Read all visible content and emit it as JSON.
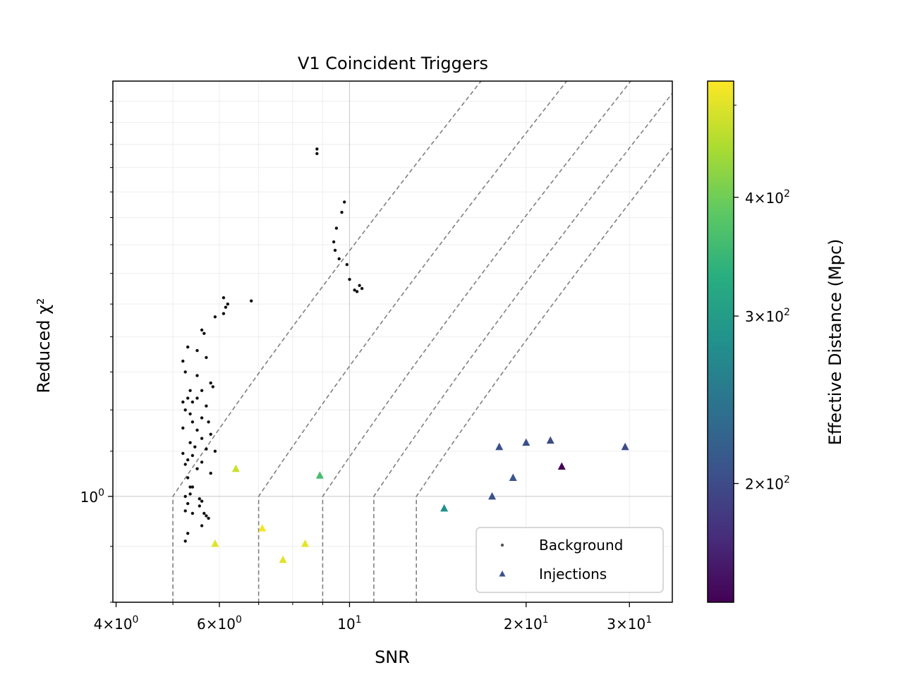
{
  "chart_data": {
    "type": "scatter",
    "title": "V1 Coincident Triggers",
    "xlabel": "SNR",
    "ylabel": "Reduced χ²",
    "xscale": "log",
    "yscale": "log",
    "xlim": [
      3.95,
      35.5
    ],
    "ylim": [
      0.8,
      2.4
    ],
    "grid": true,
    "x_ticks": [
      {
        "value": 4,
        "mant": "4",
        "exp": "0"
      },
      {
        "value": 6,
        "mant": "6",
        "exp": "0"
      },
      {
        "value": 10,
        "mant": "",
        "exp": "1"
      },
      {
        "value": 20,
        "mant": "2",
        "exp": "1"
      },
      {
        "value": 30,
        "mant": "3",
        "exp": "1"
      }
    ],
    "y_ticks": [
      {
        "value": 1.0,
        "mant": "",
        "exp": "0"
      }
    ],
    "legend": {
      "placement": "lower-right",
      "entries": [
        {
          "label": "Background",
          "marker": "dot",
          "color": "#555555"
        },
        {
          "label": "Injections",
          "marker": "triangle",
          "color": "#3b528b"
        }
      ]
    },
    "colorbar": {
      "label": "Effective Distance (Mpc)",
      "range": [
        150,
        530
      ],
      "scale": "log",
      "colormap": "viridis",
      "ticks": [
        {
          "value": 200,
          "mant": "2",
          "exp": "2"
        },
        {
          "value": 300,
          "mant": "3",
          "exp": "2"
        },
        {
          "value": 400,
          "mant": "4",
          "exp": "2"
        }
      ]
    },
    "threshold_curves": [
      {
        "snr_min": 5.0
      },
      {
        "snr_min": 7.0
      },
      {
        "snr_min": 9.0
      },
      {
        "snr_min": 11.0
      },
      {
        "snr_min": 13.0
      }
    ],
    "series": [
      {
        "name": "Background",
        "marker": "dot",
        "points": [
          [
            8.8,
            2.08
          ],
          [
            8.8,
            2.06
          ],
          [
            9.8,
            1.86
          ],
          [
            9.7,
            1.82
          ],
          [
            9.5,
            1.76
          ],
          [
            9.4,
            1.71
          ],
          [
            9.45,
            1.68
          ],
          [
            9.6,
            1.65
          ],
          [
            9.9,
            1.63
          ],
          [
            10.0,
            1.58
          ],
          [
            10.5,
            1.55
          ],
          [
            10.3,
            1.54
          ],
          [
            10.2,
            1.545
          ],
          [
            10.4,
            1.56
          ],
          [
            6.1,
            1.52
          ],
          [
            6.2,
            1.5
          ],
          [
            6.15,
            1.49
          ],
          [
            6.1,
            1.47
          ],
          [
            5.9,
            1.46
          ],
          [
            6.8,
            1.51
          ],
          [
            5.6,
            1.42
          ],
          [
            5.65,
            1.41
          ],
          [
            5.3,
            1.37
          ],
          [
            5.5,
            1.36
          ],
          [
            5.7,
            1.34
          ],
          [
            5.2,
            1.33
          ],
          [
            5.25,
            1.3
          ],
          [
            5.5,
            1.29
          ],
          [
            5.8,
            1.27
          ],
          [
            5.85,
            1.26
          ],
          [
            5.35,
            1.25
          ],
          [
            5.6,
            1.25
          ],
          [
            5.3,
            1.23
          ],
          [
            5.2,
            1.22
          ],
          [
            5.7,
            1.21
          ],
          [
            5.4,
            1.22
          ],
          [
            5.5,
            1.23
          ],
          [
            5.25,
            1.2
          ],
          [
            5.35,
            1.19
          ],
          [
            5.6,
            1.18
          ],
          [
            5.4,
            1.17
          ],
          [
            5.75,
            1.17
          ],
          [
            5.2,
            1.155
          ],
          [
            5.5,
            1.15
          ],
          [
            5.8,
            1.14
          ],
          [
            5.6,
            1.13
          ],
          [
            5.35,
            1.12
          ],
          [
            5.45,
            1.11
          ],
          [
            5.7,
            1.105
          ],
          [
            5.9,
            1.1
          ],
          [
            5.2,
            1.095
          ],
          [
            5.4,
            1.09
          ],
          [
            5.3,
            1.08
          ],
          [
            5.6,
            1.075
          ],
          [
            5.25,
            1.07
          ],
          [
            5.5,
            1.06
          ],
          [
            5.8,
            1.05
          ],
          [
            5.3,
            1.04
          ],
          [
            5.35,
            1.02
          ],
          [
            5.4,
            1.02
          ],
          [
            5.25,
            1.0
          ],
          [
            5.35,
            1.005
          ],
          [
            5.55,
            0.995
          ],
          [
            5.6,
            0.99
          ],
          [
            5.3,
            0.985
          ],
          [
            5.55,
            0.98
          ],
          [
            5.25,
            0.97
          ],
          [
            5.4,
            0.965
          ],
          [
            5.65,
            0.965
          ],
          [
            5.7,
            0.96
          ],
          [
            5.75,
            0.955
          ],
          [
            5.6,
            0.94
          ],
          [
            5.3,
            0.925
          ],
          [
            5.25,
            0.91
          ]
        ]
      },
      {
        "name": "Injections",
        "marker": "triangle",
        "points": [
          [
            6.4,
            1.06,
            480
          ],
          [
            8.9,
            1.045,
            360
          ],
          [
            5.9,
            0.905,
            500
          ],
          [
            7.1,
            0.935,
            520
          ],
          [
            8.4,
            0.905,
            505
          ],
          [
            7.7,
            0.875,
            500
          ],
          [
            14.5,
            0.975,
            280
          ],
          [
            17.5,
            1.0,
            205
          ],
          [
            19.0,
            1.04,
            210
          ],
          [
            18.0,
            1.11,
            205
          ],
          [
            20.0,
            1.12,
            205
          ],
          [
            22.0,
            1.125,
            200
          ],
          [
            29.5,
            1.11,
            200
          ],
          [
            23.0,
            1.065,
            150
          ]
        ]
      }
    ]
  }
}
